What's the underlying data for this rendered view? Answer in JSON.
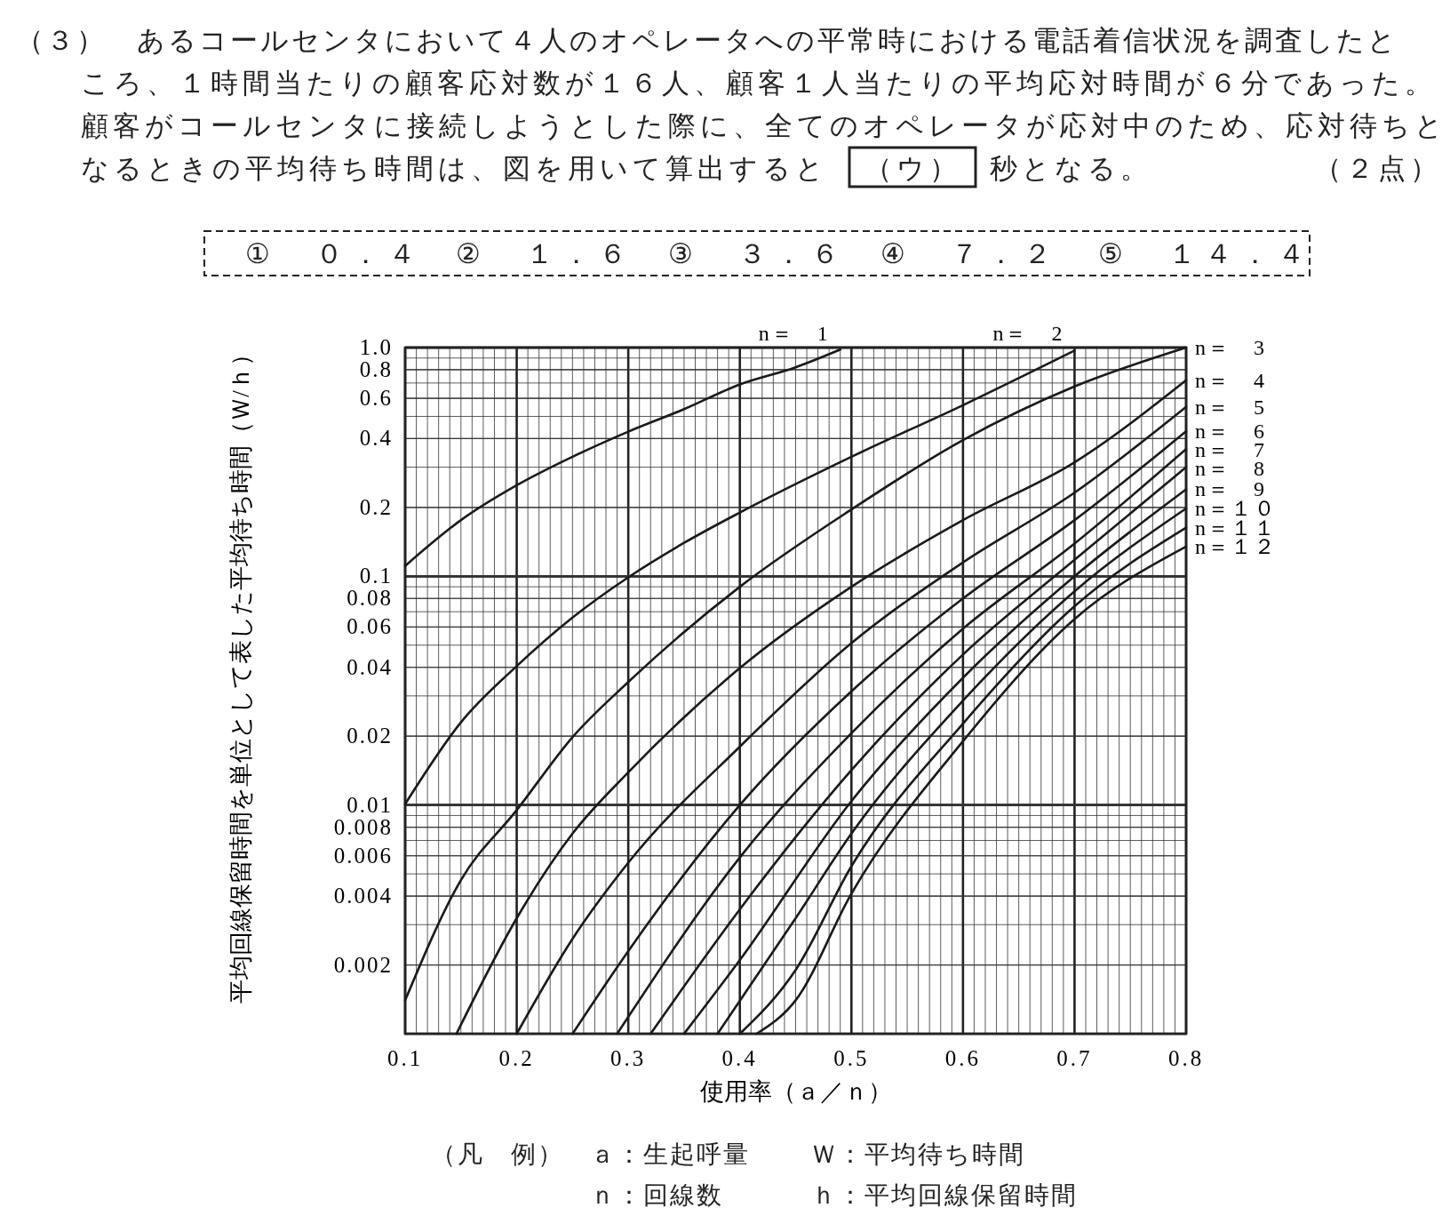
{
  "chart_data": {
    "type": "line",
    "xlabel": "使用率（ａ／ｎ）",
    "ylabel": "平均回線保留時間を単位として表した平均待ち時間（Ｗ/ｈ）",
    "annotations": [
      "（３）　あるコールセンタにおいて４人のオペレータへの平常時における電話着信状況を調査したと",
      "ころ、１時間当たりの顧客応対数が１６人、顧客１人当たりの平均応対時間が６分であった。",
      "顧客がコールセンタに接続しようとした際に、全てのオペレータが応対中のため、応対待ちと",
      "なるときの平均待ち時間は、図を用いて算出すると",
      "（ウ）",
      "秒となる。",
      "（２点）",
      "①　０．４",
      "②　１．６",
      "③　３．６",
      "④　７．２",
      "⑤　１４．４",
      "（凡　例）",
      "ａ：生起呼量",
      "Ｗ：平均待ち時間",
      "ｎ：回線数",
      "ｈ：平均回線保留時間"
    ],
    "xlim": [
      0.1,
      0.8
    ],
    "ylim": [
      0.001,
      1
    ],
    "log": "y",
    "grid": true,
    "xticks": [
      0.1,
      0.2,
      0.3,
      0.4,
      0.5,
      0.6,
      0.7,
      0.8
    ],
    "yticks": [
      {
        "value": 1,
        "label": "1.0"
      },
      0.8,
      0.6,
      0.4,
      0.2,
      0.1,
      0.08,
      0.06,
      0.04,
      0.02,
      0.01,
      0.008,
      0.006,
      0.004,
      0.002
    ],
    "series": [
      {
        "name": "n＝　1",
        "color": "#1a1a1a",
        "x": [
          0.1,
          0.15,
          0.2,
          0.25,
          0.3,
          0.35,
          0.4,
          0.45,
          0.49
        ],
        "values": [
          0.111,
          0.176,
          0.25,
          0.333,
          0.429,
          0.538,
          0.69,
          0.82,
          0.98
        ]
      },
      {
        "name": "n＝　2",
        "color": "#1a1a1a",
        "x": [
          0.1,
          0.15,
          0.2,
          0.25,
          0.3,
          0.35,
          0.4,
          0.5,
          0.6,
          0.7
        ],
        "values": [
          0.0101,
          0.023,
          0.0405,
          0.066,
          0.099,
          0.14,
          0.19,
          0.333,
          0.56,
          0.97
        ]
      },
      {
        "name": "n＝　3",
        "color": "#1a1a1a",
        "x": [
          0.1,
          0.15,
          0.2,
          0.25,
          0.3,
          0.4,
          0.5,
          0.6,
          0.7,
          0.8
        ],
        "values": [
          0.0014,
          0.0047,
          0.0095,
          0.0198,
          0.0345,
          0.09,
          0.196,
          0.394,
          0.676,
          1
        ]
      },
      {
        "name": "n＝　4",
        "color": "#1a1a1a",
        "x": [
          0.146,
          0.2,
          0.25,
          0.3,
          0.4,
          0.5,
          0.6,
          0.7,
          0.8
        ],
        "values": [
          0.001,
          0.0032,
          0.0075,
          0.0139,
          0.0397,
          0.09,
          0.176,
          0.315,
          0.72
        ]
      },
      {
        "name": "n＝　5",
        "color": "#1a1a1a",
        "x": [
          0.2,
          0.25,
          0.3,
          0.4,
          0.5,
          0.6,
          0.7,
          0.8
        ],
        "values": [
          0.001,
          0.0026,
          0.0056,
          0.018,
          0.051,
          0.115,
          0.232,
          0.55
        ]
      },
      {
        "name": "n＝　6",
        "color": "#1a1a1a",
        "x": [
          0.25,
          0.3,
          0.4,
          0.5,
          0.6,
          0.7,
          0.8
        ],
        "values": [
          0.001,
          0.0023,
          0.01,
          0.0314,
          0.08,
          0.176,
          0.43
        ]
      },
      {
        "name": "n＝　7",
        "color": "#1a1a1a",
        "x": [
          0.29,
          0.4,
          0.5,
          0.6,
          0.7,
          0.8
        ],
        "values": [
          0.001,
          0.0059,
          0.0206,
          0.059,
          0.139,
          0.36
        ]
      },
      {
        "name": "n＝　8",
        "color": "#1a1a1a",
        "x": [
          0.32,
          0.4,
          0.5,
          0.6,
          0.7,
          0.8
        ],
        "values": [
          0.001,
          0.0035,
          0.0142,
          0.0455,
          0.118,
          0.3
        ]
      },
      {
        "name": "n＝　9",
        "color": "#1a1a1a",
        "x": [
          0.35,
          0.4,
          0.5,
          0.6,
          0.7,
          0.8
        ],
        "values": [
          0.001,
          0.0021,
          0.0104,
          0.036,
          0.1,
          0.24
        ]
      },
      {
        "name": "n＝１０",
        "color": "#1a1a1a",
        "x": [
          0.38,
          0.45,
          0.5,
          0.6,
          0.7,
          0.8
        ],
        "values": [
          0.001,
          0.0032,
          0.0075,
          0.0286,
          0.086,
          0.198
        ]
      },
      {
        "name": "n＝１１",
        "color": "#1a1a1a",
        "x": [
          0.4,
          0.45,
          0.5,
          0.6,
          0.7,
          0.8
        ],
        "values": [
          0.001,
          0.0019,
          0.0054,
          0.0227,
          0.074,
          0.163
        ]
      },
      {
        "name": "n＝１２",
        "color": "#1a1a1a",
        "x": [
          0.415,
          0.45,
          0.5,
          0.6,
          0.7,
          0.8
        ],
        "values": [
          0.001,
          0.0014,
          0.0041,
          0.019,
          0.065,
          0.135
        ]
      }
    ]
  }
}
